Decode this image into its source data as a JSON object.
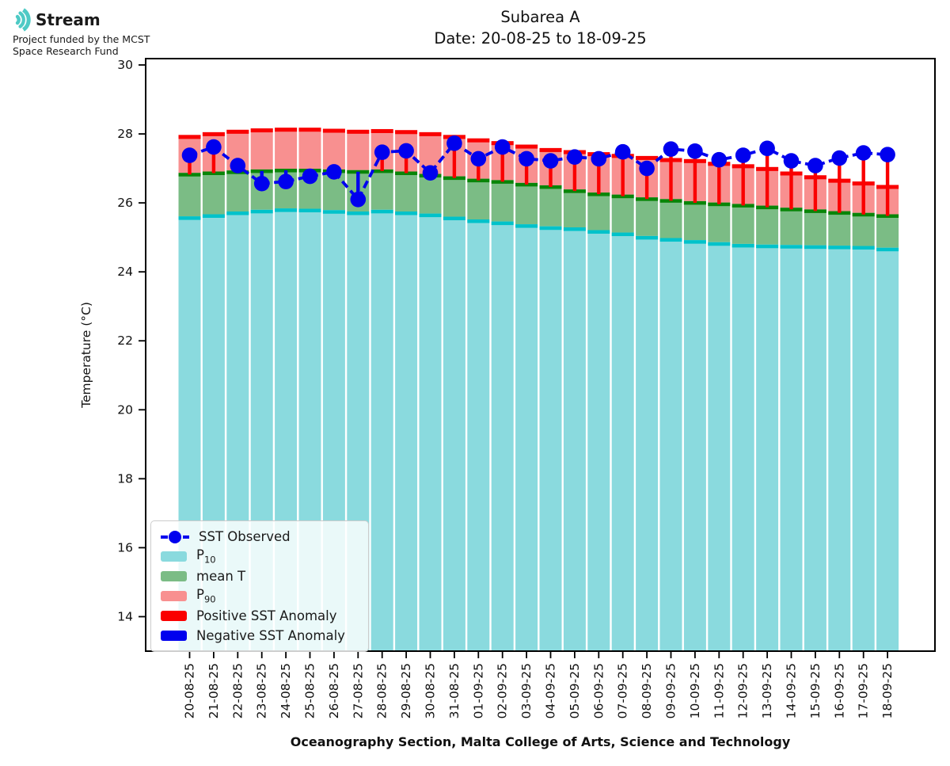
{
  "logo": {
    "name": "Stream",
    "line1": "Project funded by the MCST",
    "line2": "Space Research Fund"
  },
  "title": {
    "line1": "Subarea A",
    "line2": "Date: 20-08-25 to 18-09-25"
  },
  "axes": {
    "ylabel": "Temperature (°C)",
    "xlabel": "Oceanography Section, Malta College of Arts, Science and Technology",
    "yticks": [
      30,
      28,
      26,
      24,
      22,
      20,
      18,
      16,
      14
    ],
    "ylim": [
      13,
      30.2
    ],
    "grid": false
  },
  "legend": {
    "position": "lower-left",
    "items": [
      {
        "label": "SST Observed",
        "marker": "dashed-line-dot"
      },
      {
        "label": "P",
        "sub": "10",
        "marker": "swatch"
      },
      {
        "label": "mean T",
        "marker": "swatch"
      },
      {
        "label": "P",
        "sub": "90",
        "marker": "swatch"
      },
      {
        "label": "Positive SST Anomaly",
        "marker": "swatch"
      },
      {
        "label": "Negative SST Anomaly",
        "marker": "swatch"
      }
    ]
  },
  "colors": {
    "p10_fill": "#8adade",
    "p10_cap": "#00c2ca",
    "mean_fill": "#7bbc85",
    "mean_cap": "#088508",
    "p90_fill": "#f89090",
    "p90_cap": "#fa0000",
    "positive_anomaly": "#fa0000",
    "negative_anomaly": "#0000ee",
    "observed": "#0000ee",
    "logo_teal": "#4ecac5",
    "axis": "#000000"
  },
  "chart_data": {
    "type": "composite_bar_line",
    "title": "Subarea A  Date: 20-08-25 to 18-09-25",
    "xlabel": "Oceanography Section, Malta College of Arts, Science and Technology",
    "ylabel": "Temperature (°C)",
    "ylim": [
      13,
      30.2
    ],
    "categories": [
      "20-08-25",
      "21-08-25",
      "22-08-25",
      "23-08-25",
      "24-08-25",
      "25-08-25",
      "26-08-25",
      "27-08-25",
      "28-08-25",
      "29-08-25",
      "30-08-25",
      "31-08-25",
      "01-09-25",
      "02-09-25",
      "03-09-25",
      "04-09-25",
      "05-09-25",
      "06-09-25",
      "07-09-25",
      "08-09-25",
      "09-09-25",
      "10-09-25",
      "11-09-25",
      "12-09-25",
      "13-09-25",
      "14-09-25",
      "15-09-25",
      "16-09-25",
      "17-09-25",
      "18-09-25"
    ],
    "series": [
      {
        "name": "P10",
        "type": "bar",
        "color_key": "p10_fill",
        "cap_color_key": "p10_cap",
        "values": [
          25.61,
          25.67,
          25.75,
          25.8,
          25.84,
          25.83,
          25.79,
          25.75,
          25.8,
          25.75,
          25.69,
          25.6,
          25.52,
          25.46,
          25.38,
          25.32,
          25.29,
          25.21,
          25.14,
          25.04,
          24.98,
          24.92,
          24.86,
          24.81,
          24.79,
          24.78,
          24.77,
          24.76,
          24.75,
          24.7
        ]
      },
      {
        "name": "mean T",
        "type": "bar-segment-above-P10",
        "color_key": "mean_fill",
        "cap_color_key": "mean_cap",
        "values": [
          26.87,
          26.91,
          26.94,
          26.97,
          26.99,
          26.99,
          26.97,
          26.95,
          26.97,
          26.91,
          26.84,
          26.77,
          26.7,
          26.66,
          26.58,
          26.51,
          26.39,
          26.3,
          26.24,
          26.16,
          26.11,
          26.05,
          26.01,
          25.97,
          25.92,
          25.86,
          25.81,
          25.76,
          25.71,
          25.67
        ]
      },
      {
        "name": "P90",
        "type": "bar-segment-above-mean",
        "color_key": "p90_fill",
        "cap_color_key": "p90_cap",
        "values": [
          27.97,
          28.05,
          28.12,
          28.16,
          28.18,
          28.18,
          28.15,
          28.12,
          28.14,
          28.11,
          28.05,
          27.97,
          27.87,
          27.79,
          27.69,
          27.59,
          27.53,
          27.47,
          27.42,
          27.36,
          27.3,
          27.27,
          27.19,
          27.12,
          27.04,
          26.91,
          26.8,
          26.7,
          26.62,
          26.52
        ]
      },
      {
        "name": "SST Observed",
        "type": "dashed-line-scatter",
        "color_key": "observed",
        "values": [
          27.38,
          27.62,
          27.08,
          26.56,
          26.62,
          26.77,
          26.9,
          26.1,
          27.47,
          27.51,
          26.87,
          27.73,
          27.28,
          27.62,
          27.28,
          27.22,
          27.33,
          27.28,
          27.48,
          27.0,
          27.56,
          27.5,
          27.25,
          27.38,
          27.58,
          27.22,
          27.08,
          27.3,
          27.45,
          27.4
        ]
      },
      {
        "name": "Positive SST Anomaly",
        "type": "stem",
        "color_key": "positive_anomaly",
        "rule": "vertical line from mean T up to SST Observed where SST > mean"
      },
      {
        "name": "Negative SST Anomaly",
        "type": "stem",
        "color_key": "negative_anomaly",
        "rule": "vertical line from mean T down to SST Observed where SST < mean"
      }
    ]
  }
}
